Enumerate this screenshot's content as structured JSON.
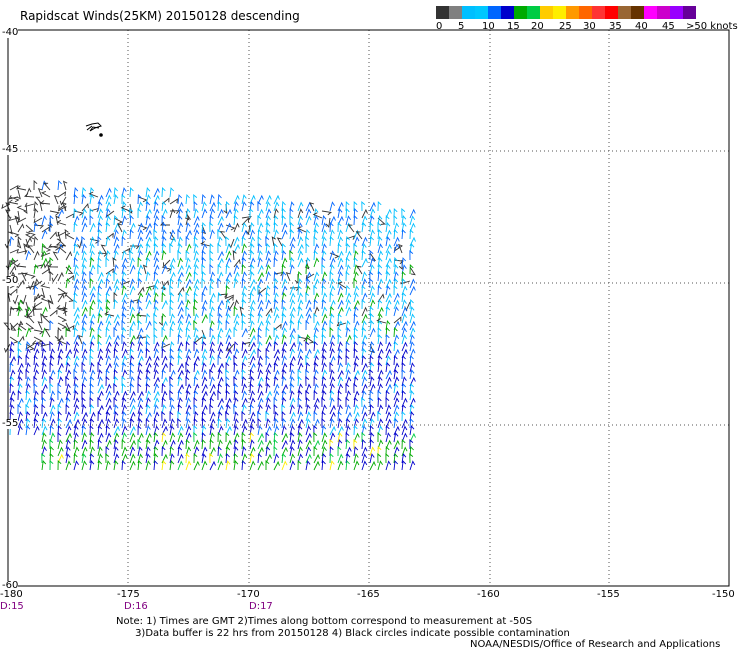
{
  "title": "Rapidscat Winds(25KM) 20150128 descending",
  "legend": {
    "colors": [
      "#333333",
      "#808080",
      "#00bfff",
      "#00c8ff",
      "#0066ff",
      "#0000cc",
      "#00aa00",
      "#00cc44",
      "#ffcc00",
      "#ffee00",
      "#ff9900",
      "#ff6600",
      "#ff3333",
      "#ff0000",
      "#996633",
      "#663300",
      "#ff00ff",
      "#cc00cc",
      "#9900ff",
      "#660099"
    ],
    "labels": [
      "0",
      "5",
      "10",
      "15",
      "20",
      "25",
      "30",
      "35",
      "40",
      "45",
      ">50 knots"
    ]
  },
  "axes": {
    "lat_labels": [
      "-40",
      "-45",
      "-50",
      "-55",
      "-60"
    ],
    "lon_labels": [
      "-180",
      "-175",
      "-170",
      "-165",
      "-160",
      "-155",
      "-150"
    ],
    "time_labels": [
      "D:15",
      "D:16",
      "D:17"
    ]
  },
  "notes": {
    "line1": "Note: 1) Times are GMT 2)Times along bottom correspond to measurement at -50S",
    "line2": "      3)Data buffer is 22 hrs from 20150128 4) Black circles indicate possible contamination",
    "credit": "NOAA/NESDIS/Office of Research and Applications"
  }
}
